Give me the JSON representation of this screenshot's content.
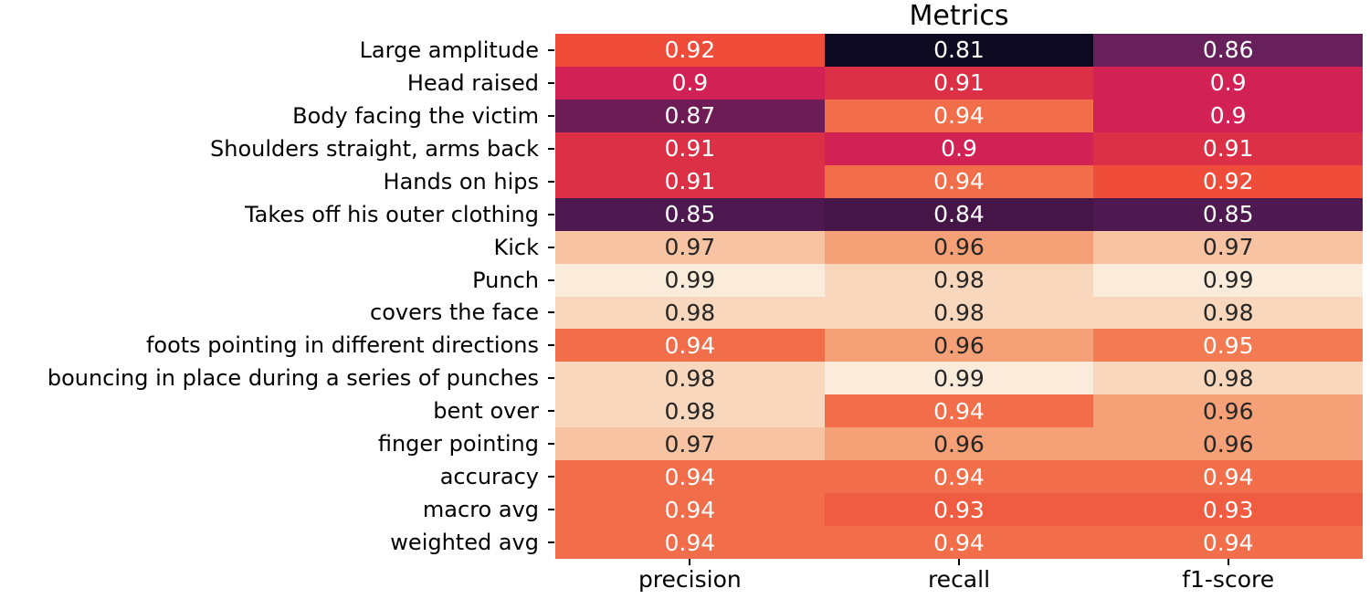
{
  "chart_data": {
    "type": "heatmap",
    "title": "Metrics",
    "columns": [
      "precision",
      "recall",
      "f1-score"
    ],
    "rows": [
      "Large amplitude",
      "Head raised",
      "Body facing the victim",
      "Shoulders straight, arms back",
      "Hands on hips",
      "Takes off his outer clothing",
      "Kick",
      "Punch",
      "covers the face",
      "foots pointing in different directions",
      "bouncing in place during a series of punches",
      "bent over",
      "finger pointing",
      "accuracy",
      "macro avg",
      "weighted avg"
    ],
    "values": [
      [
        0.92,
        0.81,
        0.86
      ],
      [
        0.9,
        0.91,
        0.9
      ],
      [
        0.87,
        0.94,
        0.9
      ],
      [
        0.91,
        0.9,
        0.91
      ],
      [
        0.91,
        0.94,
        0.92
      ],
      [
        0.85,
        0.84,
        0.85
      ],
      [
        0.97,
        0.96,
        0.97
      ],
      [
        0.99,
        0.98,
        0.99
      ],
      [
        0.98,
        0.98,
        0.98
      ],
      [
        0.94,
        0.96,
        0.95
      ],
      [
        0.98,
        0.99,
        0.98
      ],
      [
        0.98,
        0.94,
        0.96
      ],
      [
        0.97,
        0.96,
        0.96
      ],
      [
        0.94,
        0.94,
        0.94
      ],
      [
        0.94,
        0.93,
        0.93
      ],
      [
        0.94,
        0.94,
        0.94
      ]
    ],
    "vmin": 0.81,
    "vmax": 0.99,
    "colormap_name": "rocket",
    "value_colors": {
      "0.81": "#0d0a21",
      "0.84": "#461548",
      "0.85": "#4e1950",
      "0.86": "#67205c",
      "0.87": "#6e1c56",
      "0.9": "#d22255",
      "0.91": "#dc3046",
      "0.92": "#ef4d3a",
      "0.93": "#f05c41",
      "0.94": "#f26e4b",
      "0.95": "#f37a52",
      "0.96": "#f5a076",
      "0.97": "#f7c3a2",
      "0.98": "#f9d7bc",
      "0.99": "#fbebda"
    },
    "annotation_text_dark": "#262626",
    "annotation_text_light": "#ffffff",
    "luminance_threshold": 0.408,
    "background": "#ffffff",
    "grid": false,
    "legend_position": "none",
    "colorbar": false
  }
}
